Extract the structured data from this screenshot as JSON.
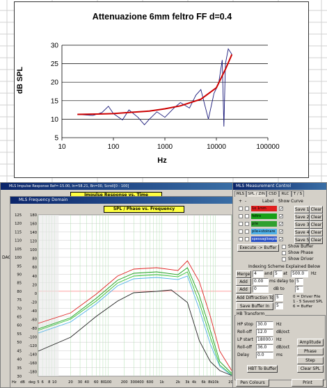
{
  "excel_chart": {
    "title": "Attenuazione 6mm feltro FF  d=0.4",
    "ylabel": "dB SPL",
    "xlabel": "Hz",
    "y_ticks": [
      "30",
      "25",
      "20",
      "15",
      "10",
      "5"
    ],
    "x_ticks": [
      "10",
      "100",
      "1000",
      "10000",
      "100000"
    ]
  },
  "chart_data": {
    "type": "line",
    "title": "Attenuazione 6mm feltro FF  d=0.4",
    "xlabel": "Hz",
    "ylabel": "dB SPL",
    "x_scale": "log",
    "xlim": [
      10,
      100000
    ],
    "ylim": [
      5,
      30
    ],
    "grid": "horizontal",
    "series": [
      {
        "color": "#1a1a7a",
        "x": [
          20,
          40,
          60,
          80,
          100,
          150,
          200,
          300,
          400,
          500,
          700,
          1000,
          1500,
          2000,
          3000,
          4000,
          5000,
          7000,
          9000,
          11000,
          13000,
          14000,
          15000,
          17000,
          20000
        ],
        "y": [
          11.3,
          11.0,
          11.8,
          13.5,
          11.5,
          9.8,
          12.5,
          10.5,
          8.5,
          10.0,
          12.0,
          10.5,
          13.0,
          14.5,
          13.0,
          16.5,
          18.0,
          10.0,
          17.0,
          19.5,
          26.0,
          8.0,
          25.0,
          29.0,
          27.5
        ]
      },
      {
        "color": "#cc0000",
        "x": [
          20,
          50,
          100,
          200,
          500,
          1000,
          2000,
          5000,
          10000,
          15000,
          20000
        ],
        "y": [
          11.3,
          11.4,
          11.5,
          11.8,
          12.2,
          12.8,
          13.6,
          15.4,
          18.5,
          23.5,
          27.5
        ]
      }
    ]
  },
  "mls_windows": {
    "impulse_title": "MLS Impulse Response  Ref=-15.00, In=58.21, Bn=00, Scroll[0 - 100]",
    "impulse_tab_label": "Impulse Response vs. Time",
    "freq_title": "MLS Frequency Domain",
    "freq_tab_label": "SPL / Phase vs. Frequency",
    "left_partial_label": "DAC",
    "spl_ticks": [
      "125",
      "120",
      "115",
      "110",
      "105",
      "100",
      "95",
      "90",
      "85",
      "80",
      "75",
      "70",
      "65",
      "60",
      "55",
      "50",
      "45",
      "40",
      "35",
      "30"
    ],
    "phase_ticks": [
      "180",
      "160",
      "140",
      "120",
      "100",
      "80",
      "60",
      "40",
      "20",
      "0",
      "-20",
      "-40",
      "-60",
      "-80",
      "-100",
      "-120",
      "-140",
      "-160",
      "-180"
    ],
    "x_axis_ticks": [
      "Hz",
      "dB",
      "deg",
      "5",
      "6",
      "8",
      "10",
      "20",
      "30",
      "40",
      "60",
      "80",
      "100",
      "200",
      "300",
      "400",
      "600",
      "1k",
      "2k",
      "3k",
      "4k",
      "6k",
      "8k",
      "10k",
      "20k"
    ]
  },
  "control_panel": {
    "title": "MLS Measurement Control",
    "tabs": [
      "MLS",
      "SPL / ZIN",
      "CSD",
      "RLC",
      "T / S"
    ],
    "curve_header": [
      "+",
      "-",
      "Label",
      "Show Curve"
    ],
    "curves": [
      {
        "label": "1o 1mm",
        "color": "#e02020",
        "save": "Save 1",
        "clear": "Clear"
      },
      {
        "label": "feltro",
        "color": "#18a018",
        "save": "Save 2",
        "clear": "Clear"
      },
      {
        "label": "pile",
        "color": "#30a030",
        "save": "Save 3",
        "clear": "Clear"
      },
      {
        "label": "pile+stoinare",
        "color": "#4fb0e8",
        "save": "Save 4",
        "clear": "Clear"
      },
      {
        "label": "spessaglioeple",
        "color": "#2850c8",
        "save": "Save 5",
        "clear": "Clear"
      }
    ],
    "execute_buffer": "Execute -> Buffer",
    "show_buffer": "Show Buffer",
    "show_phase": "Show Phase",
    "show_driver": "Show Driver",
    "indexing_label": "Indexing Scheme Explained Below",
    "merge_label": "Merge",
    "merge_a": "4",
    "merge_and": "and",
    "merge_b": "5",
    "merge_at": "at",
    "merge_freq": "500.0",
    "merge_unit": "Hz",
    "add1_label": "Add",
    "add1_value": "0.00",
    "add1_mid": "ms delay to",
    "add1_target": "5",
    "add2_label": "Add",
    "add2_value": "0",
    "add2_mid": "dB to",
    "add2_target": "5",
    "add_diffraction": "Add Diffraction To",
    "diffraction_target": "5",
    "save_buffer_in": "Save Buffer In",
    "save_buffer_target": "5",
    "legend_lines": [
      "0 = Driver File",
      "1 - 5 Saved SPL",
      "6 = Buffer"
    ],
    "hb_transform": "HB Transform",
    "hp_stop_label": "HP stop",
    "hp_stop_value": "30.0",
    "hp_stop_unit": "Hz",
    "rolloff1_label": "Roll-off",
    "rolloff1_value": "12.0",
    "rolloff1_unit": "dB/oct",
    "lp_start_label": "LP start",
    "lp_start_value": "18000.0",
    "lp_start_unit": "Hz",
    "rolloff2_label": "Roll-off",
    "rolloff2_value": "36.0",
    "rolloff2_unit": "dB/oct",
    "delay_label": "Delay",
    "delay_value": "0.0",
    "delay_unit": "ms",
    "amplitude_btn": "Amplitude",
    "phase_btn": "Phase",
    "step_btn": "Step",
    "hbt_buffer_btn": "HBT To Buffer",
    "clear_spl_btn": "Clear SPL",
    "pen_colours_btn": "Pen Colours",
    "print_btn": "Print"
  }
}
